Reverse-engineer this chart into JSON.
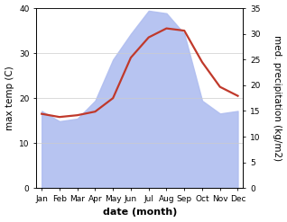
{
  "months": [
    "Jan",
    "Feb",
    "Mar",
    "Apr",
    "May",
    "Jun",
    "Jul",
    "Aug",
    "Sep",
    "Oct",
    "Nov",
    "Dec"
  ],
  "x": [
    0,
    1,
    2,
    3,
    4,
    5,
    6,
    7,
    8,
    9,
    10,
    11
  ],
  "max_temp": [
    16.5,
    15.8,
    16.2,
    17.0,
    20.0,
    29.0,
    33.5,
    35.5,
    35.0,
    28.0,
    22.5,
    20.5
  ],
  "precip_right": [
    15.0,
    13.0,
    13.5,
    17.0,
    25.0,
    30.0,
    34.5,
    34.0,
    30.0,
    17.0,
    14.5,
    15.0
  ],
  "temp_color": "#c0392b",
  "precip_fill_color": "#b0bef0",
  "ylim_left": [
    0,
    40
  ],
  "ylim_right": [
    0,
    35
  ],
  "ylabel_left": "max temp (C)",
  "ylabel_right": "med. precipitation (kg/m2)",
  "xlabel": "date (month)",
  "label_fontsize": 7.5,
  "tick_fontsize": 6.5,
  "xlabel_fontsize": 8,
  "linewidth": 1.6
}
